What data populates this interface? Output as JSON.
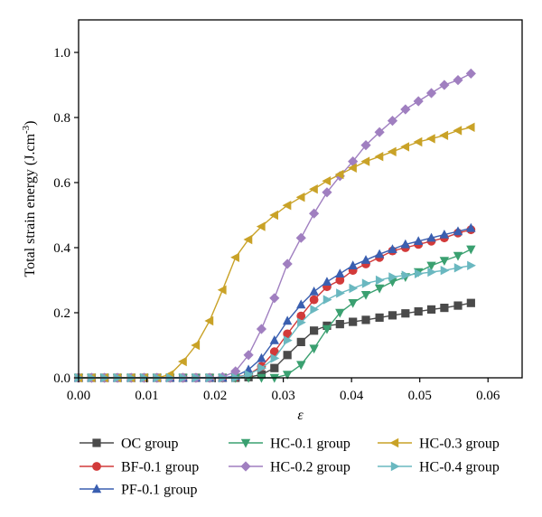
{
  "chart_data": {
    "type": "line",
    "title": "",
    "xlabel": "ε",
    "ylabel": "Total strain energy (J.cm",
    "ylabel_sup": "-3",
    "ylabel_tail": ")",
    "xlim": [
      0,
      0.065
    ],
    "ylim": [
      0,
      1.1
    ],
    "xticks": [
      0.0,
      0.01,
      0.02,
      0.03,
      0.04,
      0.05,
      0.06
    ],
    "xtick_labels": [
      "0.00",
      "0.01",
      "0.02",
      "0.03",
      "0.04",
      "0.05",
      "0.06"
    ],
    "yticks": [
      0.0,
      0.2,
      0.4,
      0.6,
      0.8,
      1.0
    ],
    "ytick_labels": [
      "0.0",
      "0.2",
      "0.4",
      "0.6",
      "0.8",
      "1.0"
    ],
    "grid": false,
    "legend_position": "bottom",
    "x": [
      0.0,
      0.0019,
      0.0038,
      0.0057,
      0.0077,
      0.0096,
      0.0115,
      0.0134,
      0.0153,
      0.0172,
      0.0192,
      0.0211,
      0.023,
      0.0249,
      0.0268,
      0.0287,
      0.0306,
      0.0326,
      0.0345,
      0.0364,
      0.0383,
      0.0402,
      0.0421,
      0.0441,
      0.046,
      0.0479,
      0.0498,
      0.0517,
      0.0536,
      0.0556,
      0.0575
    ],
    "series": [
      {
        "name": "OC group",
        "color": "#4a4a4a",
        "marker": "square",
        "values": [
          0,
          0,
          0,
          0,
          0,
          0,
          0,
          0,
          0,
          0,
          0,
          0,
          0,
          0.002,
          0.01,
          0.03,
          0.07,
          0.11,
          0.145,
          0.16,
          0.165,
          0.172,
          0.178,
          0.185,
          0.192,
          0.198,
          0.204,
          0.21,
          0.215,
          0.222,
          0.23
        ]
      },
      {
        "name": "BF-0.1 group",
        "color": "#d23a3a",
        "marker": "circle",
        "values": [
          0,
          0,
          0,
          0,
          0,
          0,
          0,
          0,
          0,
          0,
          0,
          0,
          0.002,
          0.01,
          0.035,
          0.08,
          0.135,
          0.19,
          0.24,
          0.28,
          0.3,
          0.33,
          0.35,
          0.37,
          0.39,
          0.4,
          0.41,
          0.42,
          0.43,
          0.445,
          0.455
        ]
      },
      {
        "name": "PF-0.1 group",
        "color": "#3a5fb0",
        "marker": "triangle-up",
        "values": [
          0,
          0,
          0,
          0,
          0,
          0,
          0,
          0,
          0,
          0,
          0,
          0,
          0.005,
          0.025,
          0.06,
          0.115,
          0.175,
          0.225,
          0.265,
          0.295,
          0.32,
          0.345,
          0.362,
          0.38,
          0.395,
          0.41,
          0.42,
          0.43,
          0.44,
          0.45,
          0.46
        ]
      },
      {
        "name": "HC-0.1 group",
        "color": "#3aa070",
        "marker": "triangle-down",
        "values": [
          0,
          0,
          0,
          0,
          0,
          0,
          0,
          0,
          0,
          0,
          0,
          0,
          0,
          0,
          0,
          0,
          0.01,
          0.04,
          0.09,
          0.15,
          0.2,
          0.23,
          0.255,
          0.275,
          0.295,
          0.31,
          0.325,
          0.345,
          0.36,
          0.375,
          0.395
        ]
      },
      {
        "name": "HC-0.2 group",
        "color": "#a07fc0",
        "marker": "diamond",
        "values": [
          0,
          0,
          0,
          0,
          0,
          0,
          0,
          0,
          0,
          0,
          0,
          0.002,
          0.02,
          0.07,
          0.15,
          0.245,
          0.35,
          0.43,
          0.505,
          0.57,
          0.62,
          0.665,
          0.715,
          0.755,
          0.79,
          0.825,
          0.85,
          0.875,
          0.9,
          0.915,
          0.935
        ]
      },
      {
        "name": "HC-0.3 group",
        "color": "#c9a227",
        "marker": "triangle-left",
        "values": [
          0,
          0,
          0,
          0,
          0,
          0,
          0,
          0.01,
          0.05,
          0.1,
          0.175,
          0.27,
          0.37,
          0.425,
          0.465,
          0.5,
          0.53,
          0.555,
          0.58,
          0.605,
          0.625,
          0.645,
          0.665,
          0.68,
          0.695,
          0.71,
          0.725,
          0.735,
          0.745,
          0.76,
          0.77
        ]
      },
      {
        "name": "HC-0.4 group",
        "color": "#6ab8c0",
        "marker": "triangle-right",
        "values": [
          0,
          0,
          0,
          0,
          0,
          0,
          0,
          0,
          0,
          0,
          0,
          0,
          0,
          0.01,
          0.03,
          0.06,
          0.115,
          0.17,
          0.21,
          0.24,
          0.26,
          0.275,
          0.29,
          0.3,
          0.31,
          0.315,
          0.32,
          0.325,
          0.33,
          0.338,
          0.345
        ]
      }
    ]
  }
}
